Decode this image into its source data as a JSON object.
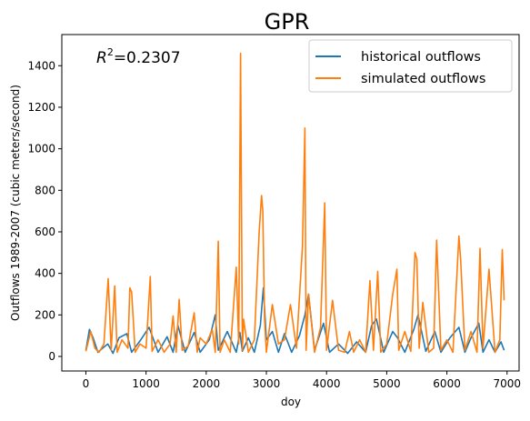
{
  "chart_data": {
    "type": "line",
    "title": "GPR",
    "xlabel": "doy",
    "ylabel": "Outflows 1989-2007 (cubic meters/second)",
    "xlim": [
      -400,
      7200
    ],
    "ylim": [
      -70,
      1550
    ],
    "x_ticks": [
      0,
      1000,
      2000,
      3000,
      4000,
      5000,
      6000,
      7000
    ],
    "y_ticks": [
      0,
      200,
      400,
      600,
      800,
      1000,
      1200,
      1400
    ],
    "grid": false,
    "legend_position": "top-right",
    "annotation": {
      "prefix": "R",
      "superscript": "2",
      "value_text": "=0.2307"
    },
    "series": [
      {
        "name": "historical outflows",
        "color": "#1f77b4",
        "x": [
          0,
          60,
          120,
          200,
          300,
          365,
          450,
          550,
          680,
          760,
          900,
          1050,
          1200,
          1350,
          1450,
          1530,
          1650,
          1800,
          1900,
          2050,
          2150,
          2200,
          2350,
          2500,
          2560,
          2600,
          2700,
          2800,
          2900,
          2950,
          3000,
          3100,
          3200,
          3300,
          3420,
          3550,
          3640,
          3700,
          3800,
          3950,
          4050,
          4200,
          4350,
          4500,
          4650,
          4750,
          4830,
          4950,
          5100,
          5180,
          5300,
          5450,
          5520,
          5650,
          5800,
          5900,
          6050,
          6200,
          6300,
          6400,
          6530,
          6600,
          6700,
          6800,
          6900,
          6950
        ],
        "y": [
          30,
          130,
          90,
          20,
          45,
          60,
          15,
          90,
          110,
          20,
          75,
          140,
          20,
          95,
          20,
          150,
          20,
          115,
          20,
          80,
          200,
          30,
          120,
          20,
          115,
          25,
          90,
          20,
          150,
          330,
          80,
          120,
          20,
          110,
          20,
          100,
          200,
          300,
          30,
          160,
          20,
          60,
          15,
          70,
          20,
          150,
          180,
          20,
          120,
          90,
          20,
          130,
          200,
          25,
          120,
          20,
          90,
          140,
          20,
          90,
          160,
          20,
          80,
          20,
          70,
          30
        ]
      },
      {
        "name": "simulated outflows",
        "color": "#ff7f0e",
        "x": [
          0,
          80,
          150,
          220,
          300,
          370,
          420,
          480,
          520,
          600,
          700,
          730,
          760,
          820,
          900,
          1000,
          1070,
          1100,
          1200,
          1300,
          1400,
          1450,
          1500,
          1550,
          1600,
          1700,
          1800,
          1850,
          1900,
          2000,
          2100,
          2150,
          2200,
          2230,
          2300,
          2400,
          2500,
          2540,
          2570,
          2600,
          2620,
          2700,
          2800,
          2880,
          2920,
          2940,
          2970,
          3000,
          3100,
          3200,
          3300,
          3400,
          3500,
          3600,
          3640,
          3660,
          3700,
          3800,
          3900,
          3970,
          4000,
          4100,
          4200,
          4300,
          4380,
          4450,
          4550,
          4650,
          4720,
          4780,
          4850,
          4900,
          5000,
          5100,
          5170,
          5200,
          5300,
          5400,
          5470,
          5500,
          5540,
          5600,
          5700,
          5780,
          5830,
          5900,
          6000,
          6100,
          6200,
          6230,
          6300,
          6400,
          6500,
          6550,
          6600,
          6700,
          6800,
          6880,
          6920,
          6950
        ],
        "y": [
          25,
          120,
          40,
          20,
          60,
          375,
          30,
          340,
          20,
          80,
          40,
          330,
          310,
          20,
          60,
          40,
          385,
          25,
          80,
          20,
          60,
          195,
          20,
          275,
          30,
          50,
          210,
          20,
          90,
          60,
          130,
          20,
          555,
          20,
          80,
          20,
          430,
          60,
          1460,
          30,
          180,
          20,
          80,
          600,
          775,
          700,
          180,
          20,
          250,
          60,
          80,
          250,
          40,
          530,
          1100,
          30,
          300,
          20,
          140,
          740,
          30,
          270,
          30,
          20,
          120,
          20,
          80,
          20,
          365,
          30,
          410,
          20,
          60,
          300,
          420,
          30,
          120,
          25,
          500,
          470,
          40,
          260,
          20,
          40,
          560,
          30,
          80,
          20,
          580,
          460,
          30,
          120,
          20,
          520,
          40,
          420,
          20,
          80,
          515,
          270
        ]
      }
    ]
  }
}
